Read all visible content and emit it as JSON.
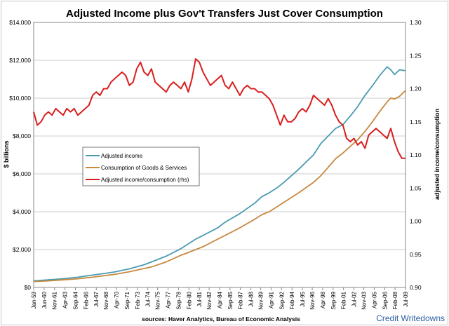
{
  "chart_data": {
    "type": "line",
    "title": "Adjusted Income plus Gov't Transfers Just Cover Consumption",
    "ylabel": "$ billions",
    "y2label": "adjusted income/consumption",
    "source": "sources: Haver Analytics,  Bureau of Economic  Analysis",
    "credit": "Credit Writedowns",
    "ylim": [
      0,
      14000
    ],
    "y2lim": [
      0.9,
      1.3
    ],
    "xlim_years": [
      1959.0,
      2009.5
    ],
    "grid": "horizontal",
    "legend_placement": "center-left",
    "yticks": [
      "$0",
      "$2,000",
      "$4,000",
      "$6,000",
      "$8,000",
      "$10,000",
      "$12,000",
      "$14,000"
    ],
    "y2ticks": [
      "0.90",
      "0.95",
      "1.00",
      "1.05",
      "1.10",
      "1.15",
      "1.20",
      "1.25",
      "1.30"
    ],
    "xticks": [
      "Jan-59",
      "Jun-60",
      "Nov-61",
      "Apr-63",
      "Sep-64",
      "Feb-66",
      "Jul-67",
      "Nov-68",
      "Apr-70",
      "Sep-71",
      "Feb-73",
      "Jul-74",
      "Nov-75",
      "Apr-77",
      "Sep-78",
      "Feb-80",
      "Jul-81",
      "Nov-82",
      "Apr-84",
      "Sep-85",
      "Feb-87",
      "Jul-88",
      "Nov-89",
      "Apr-91",
      "Sep-92",
      "Feb-94",
      "Jul-95",
      "Nov-96",
      "Apr-98",
      "Sep-99",
      "Feb-01",
      "Jul-02",
      "Nov-03",
      "Apr-05",
      "Sep-06",
      "Feb-08",
      "Jul-09"
    ],
    "series": [
      {
        "name": "Adjusted income",
        "color": "#4a9bb0",
        "axis": "left",
        "x": [
          1959,
          1961,
          1963,
          1965,
          1967,
          1969,
          1970,
          1972,
          1974,
          1975,
          1977,
          1979,
          1980,
          1981,
          1982,
          1984,
          1985,
          1987,
          1989,
          1990,
          1991,
          1992,
          1993,
          1995,
          1997,
          1998,
          1999,
          2000,
          2001,
          2002,
          2003,
          2004,
          2005,
          2006,
          2007,
          2007.5,
          2008,
          2008.7,
          2009.5
        ],
        "values": [
          350,
          400,
          460,
          540,
          650,
          760,
          820,
          980,
          1200,
          1350,
          1650,
          2050,
          2300,
          2550,
          2750,
          3150,
          3450,
          3900,
          4450,
          4800,
          5000,
          5250,
          5550,
          6250,
          7000,
          7600,
          8000,
          8400,
          8600,
          9050,
          9550,
          10150,
          10650,
          11200,
          11650,
          11500,
          11250,
          11500,
          11450
        ]
      },
      {
        "name": "Consumption of Goods & Services",
        "color": "#c8893f",
        "axis": "left",
        "x": [
          1959,
          1961,
          1963,
          1965,
          1967,
          1969,
          1970,
          1972,
          1974,
          1975,
          1977,
          1979,
          1980,
          1981,
          1982,
          1984,
          1985,
          1987,
          1989,
          1990,
          1991,
          1992,
          1993,
          1995,
          1997,
          1998,
          1999,
          2000,
          2001,
          2002,
          2003,
          2004,
          2005,
          2006,
          2007,
          2007.5,
          2008,
          2008.7,
          2009.5
        ],
        "values": [
          310,
          350,
          400,
          460,
          540,
          640,
          690,
          830,
          1000,
          1080,
          1350,
          1700,
          1850,
          2000,
          2150,
          2550,
          2750,
          3150,
          3600,
          3850,
          4000,
          4250,
          4500,
          5000,
          5550,
          5900,
          6350,
          6800,
          7100,
          7450,
          7800,
          8250,
          8750,
          9300,
          9800,
          10000,
          9950,
          10100,
          10400
        ]
      },
      {
        "name": "Adjusted income/consumption  (rhs)",
        "color": "#d81e1e",
        "axis": "right",
        "x_start": 1959.0,
        "x_step": 0.5,
        "values": [
          1.165,
          1.145,
          1.15,
          1.16,
          1.165,
          1.16,
          1.17,
          1.165,
          1.16,
          1.17,
          1.165,
          1.17,
          1.16,
          1.165,
          1.17,
          1.175,
          1.19,
          1.195,
          1.19,
          1.2,
          1.2,
          1.21,
          1.215,
          1.22,
          1.225,
          1.22,
          1.205,
          1.21,
          1.23,
          1.24,
          1.225,
          1.22,
          1.23,
          1.21,
          1.205,
          1.2,
          1.195,
          1.205,
          1.21,
          1.205,
          1.2,
          1.21,
          1.195,
          1.215,
          1.245,
          1.24,
          1.225,
          1.215,
          1.205,
          1.21,
          1.215,
          1.22,
          1.205,
          1.2,
          1.21,
          1.2,
          1.19,
          1.2,
          1.205,
          1.2,
          1.2,
          1.195,
          1.195,
          1.19,
          1.185,
          1.175,
          1.16,
          1.145,
          1.16,
          1.15,
          1.15,
          1.155,
          1.165,
          1.17,
          1.165,
          1.175,
          1.19,
          1.185,
          1.18,
          1.175,
          1.185,
          1.175,
          1.16,
          1.15,
          1.145,
          1.125,
          1.12,
          1.125,
          1.115,
          1.12,
          1.11,
          1.13,
          1.135,
          1.14,
          1.135,
          1.13,
          1.125,
          1.14,
          1.12,
          1.105,
          1.095,
          1.095
        ]
      }
    ]
  }
}
